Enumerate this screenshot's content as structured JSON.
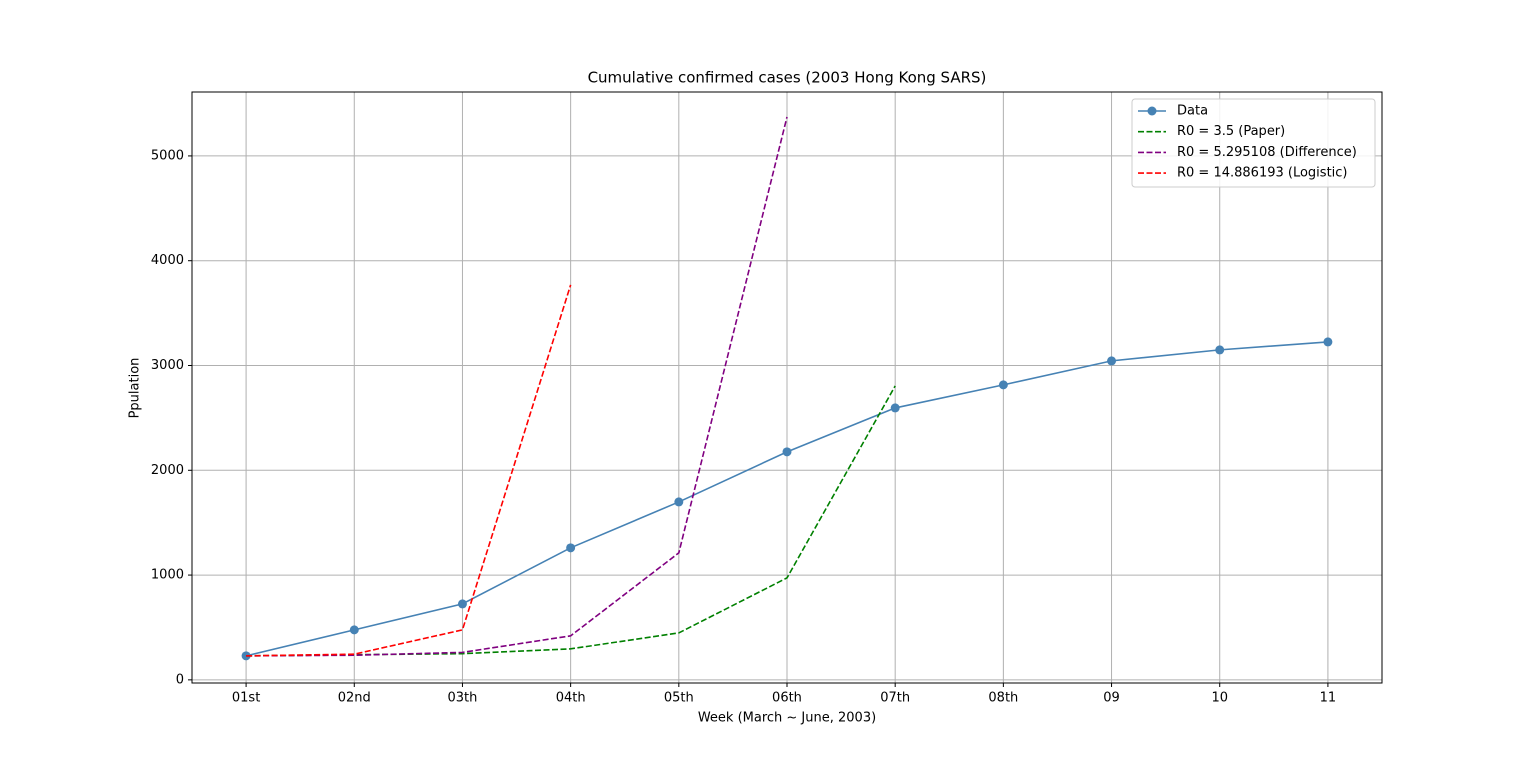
{
  "chart_data": {
    "type": "line",
    "title": "Cumulative confirmed cases (2003 Hong Kong SARS)",
    "x_label": "Week (March ~ June, 2003)",
    "y_label": "Ppulation",
    "categories": [
      "01st",
      "02nd",
      "03th",
      "04th",
      "05th",
      "06th",
      "07th",
      "08th",
      "09",
      "10",
      "11"
    ],
    "series": [
      {
        "name": "Data",
        "color": "#4682b4",
        "linestyle": "solid",
        "marker": "o",
        "values": [
          229,
          477,
          725,
          1260,
          1698,
          2176,
          2595,
          2815,
          3044,
          3149,
          3225
        ]
      },
      {
        "name": "R0 = 3.5 (Paper)",
        "color": "#008000",
        "linestyle": "dashed",
        "values": [
          229,
          240,
          250,
          296,
          448,
          973,
          2805,
          null,
          null,
          null,
          null
        ]
      },
      {
        "name": "R0 = 5.295108 (Difference)",
        "color": "#800080",
        "linestyle": "dashed",
        "values": [
          229,
          235,
          262,
          420,
          1212,
          5372,
          null,
          null,
          null,
          null,
          null
        ]
      },
      {
        "name": "R0 = 14.886193 (Logistic)",
        "color": "#ff0000",
        "linestyle": "dashed",
        "values": [
          229,
          245,
          477,
          3769,
          null,
          null,
          null,
          null,
          null,
          null,
          null
        ]
      }
    ],
    "ylim": [
      -30,
      5610
    ],
    "yticks": [
      0,
      1000,
      2000,
      3000,
      4000,
      5000
    ],
    "grid": true,
    "legend": "upper right"
  }
}
